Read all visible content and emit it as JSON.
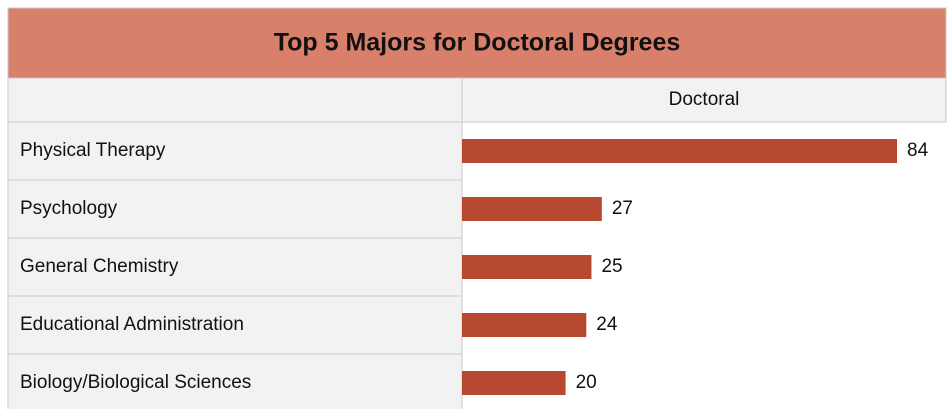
{
  "chart_data": {
    "type": "bar",
    "orientation": "horizontal",
    "title": "Top 5 Majors for Doctoral Degrees",
    "categories": [
      "Physical Therapy",
      "Psychology",
      "General Chemistry",
      "Educational Administration",
      "Biology/Biological Sciences"
    ],
    "series": [
      {
        "name": "Doctoral",
        "color": "#b5482f",
        "values": [
          84,
          27,
          25,
          24,
          20
        ]
      }
    ]
  }
}
